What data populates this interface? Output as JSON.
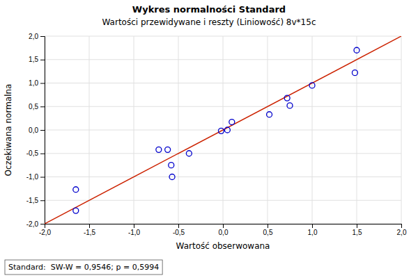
{
  "chart_data": {
    "type": "scatter",
    "title": "Wykres normalności   Standard",
    "subtitle": "Wartości przewidywane i reszty (Liniowość) 8v*15c",
    "x_label": "Wartość obserwowana",
    "y_label": "Oczekiwana normalna",
    "annotation": "Standard:  SW-W = 0,9546; p = 0,5994",
    "xlim": [
      -2.0,
      2.0
    ],
    "ylim": [
      -2.0,
      2.0
    ],
    "xticks": [
      {
        "value": -2.0,
        "label": "-2,0"
      },
      {
        "value": -1.5,
        "label": "-1,5"
      },
      {
        "value": -1.0,
        "label": "-1,0"
      },
      {
        "value": -0.5,
        "label": "-0,5"
      },
      {
        "value": 0.0,
        "label": "0,0"
      },
      {
        "value": 0.5,
        "label": "0,5"
      },
      {
        "value": 1.0,
        "label": "1,0"
      },
      {
        "value": 1.5,
        "label": "1,5"
      },
      {
        "value": 2.0,
        "label": "2,0"
      }
    ],
    "yticks": [
      {
        "value": -2.0,
        "label": "-2,0"
      },
      {
        "value": -1.5,
        "label": "-1,5"
      },
      {
        "value": -1.0,
        "label": "-1,0"
      },
      {
        "value": -0.5,
        "label": "-0,5"
      },
      {
        "value": 0.0,
        "label": "0,0"
      },
      {
        "value": 0.5,
        "label": "0,5"
      },
      {
        "value": 1.0,
        "label": "1,0"
      },
      {
        "value": 1.5,
        "label": "1,5"
      },
      {
        "value": 2.0,
        "label": "2,0"
      }
    ],
    "grid": true,
    "series": [
      {
        "type": "scatter",
        "color": "#0000cc",
        "marker": "circle",
        "x": [
          -1.65,
          -1.65,
          -0.57,
          -0.58,
          -0.62,
          -0.72,
          -0.38,
          -0.02,
          0.05,
          0.1,
          0.52,
          0.75,
          0.72,
          1.0,
          1.48,
          1.5
        ],
        "values": [
          -1.72,
          -1.27,
          -1.0,
          -0.75,
          -0.42,
          -0.42,
          -0.5,
          -0.02,
          0.0,
          0.17,
          0.33,
          0.52,
          0.68,
          0.95,
          1.22,
          1.7
        ]
      },
      {
        "type": "line",
        "color": "#cc2200",
        "line_style": "solid",
        "x": [
          -2.0,
          2.0
        ],
        "values": [
          -2.0,
          2.0
        ]
      }
    ]
  }
}
